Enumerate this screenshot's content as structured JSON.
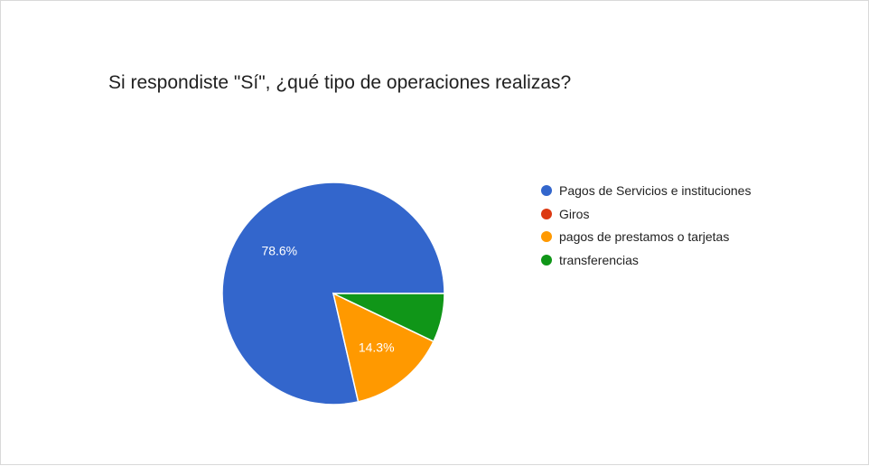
{
  "chart_data": {
    "type": "pie",
    "title": "Si respondiste \"Sí\", ¿qué tipo de operaciones realizas?",
    "slices": [
      {
        "label": "Pagos de Servicios e instituciones",
        "value": 78.6,
        "color": "#3366cc",
        "data_label": "78.6%"
      },
      {
        "label": "Giros",
        "value": 0,
        "color": "#dc3912",
        "data_label": ""
      },
      {
        "label": "pagos de prestamos o tarjetas",
        "value": 14.3,
        "color": "#ff9900",
        "data_label": "14.3%"
      },
      {
        "label": "transferencias",
        "value": 7.1,
        "color": "#109618",
        "data_label": ""
      }
    ],
    "legend_position": "right"
  }
}
